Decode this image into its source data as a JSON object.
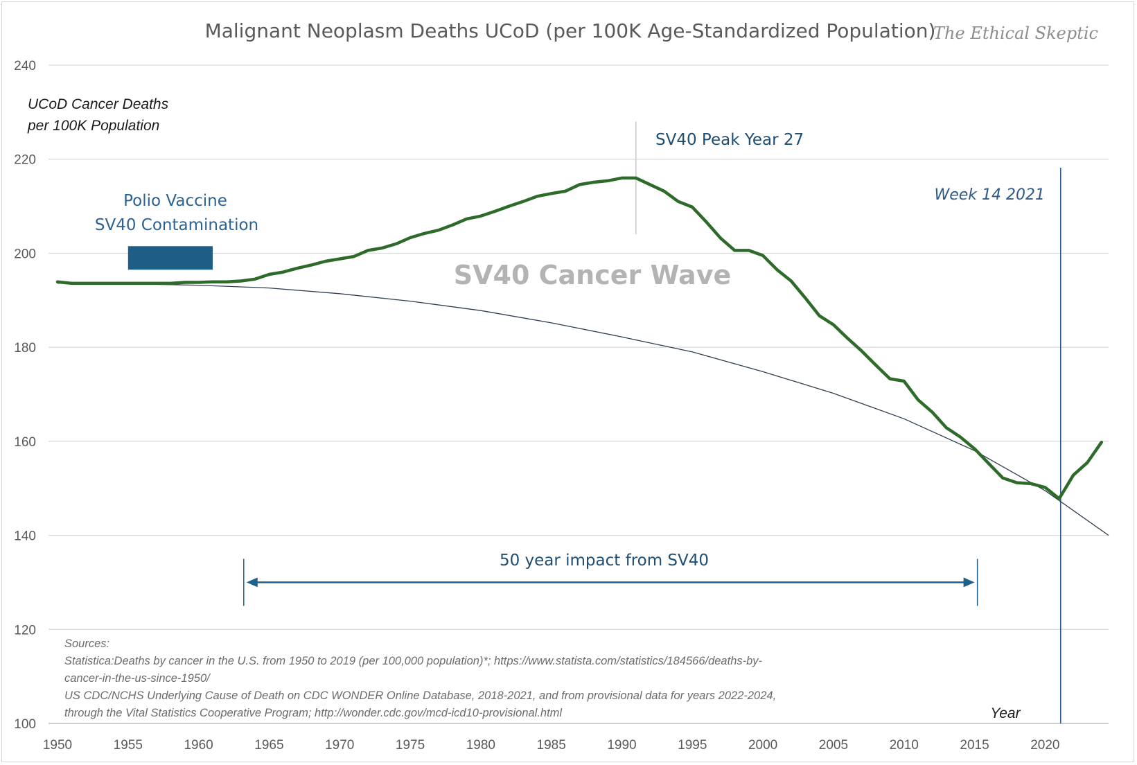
{
  "chart_data": {
    "type": "line",
    "title": "Malignant Neoplasm Deaths UCoD (per 100K Age-Standardized Population)",
    "watermark": "The Ethical Skeptic",
    "ylabel_line1": "UCoD Cancer Deaths",
    "ylabel_line2": "per 100K Population",
    "xlabel": "Year",
    "xlim": [
      1950,
      2024.5
    ],
    "ylim": [
      100,
      240
    ],
    "x_ticks": [
      1950,
      1955,
      1960,
      1965,
      1970,
      1975,
      1980,
      1985,
      1990,
      1995,
      2000,
      2005,
      2010,
      2015,
      2020
    ],
    "y_ticks": [
      100,
      120,
      140,
      160,
      180,
      200,
      220,
      240
    ],
    "grid": true,
    "legend": "none",
    "colors": {
      "actual": "#2e6b2a",
      "trend": "#2f3d4e",
      "annotation": "#2e6391",
      "arrow": "#1f5f8b",
      "vaccine_bar": "#1e5d85",
      "week_line": "#2e5a8a",
      "peak_line": "#c8c8c8",
      "grid": "#d9d9d9"
    },
    "series": [
      {
        "style": "thick",
        "x": [
          1950,
          1951,
          1952,
          1953,
          1954,
          1955,
          1956,
          1957,
          1958,
          1959,
          1960,
          1961,
          1962,
          1963,
          1964,
          1965,
          1966,
          1967,
          1968,
          1969,
          1970,
          1971,
          1972,
          1973,
          1974,
          1975,
          1976,
          1977,
          1978,
          1979,
          1980,
          1981,
          1982,
          1983,
          1984,
          1985,
          1986,
          1987,
          1988,
          1989,
          1990,
          1991,
          1992,
          1993,
          1994,
          1995,
          1996,
          1997,
          1998,
          1999,
          2000,
          2001,
          2002,
          2003,
          2004,
          2005,
          2006,
          2007,
          2008,
          2009,
          2010,
          2011,
          2012,
          2013,
          2014,
          2015,
          2016,
          2017,
          2018,
          2019,
          2020,
          2021,
          2022,
          2023,
          2024
        ],
        "values": [
          193.9,
          193.6,
          193.6,
          193.6,
          193.6,
          193.6,
          193.6,
          193.6,
          193.6,
          193.8,
          193.8,
          193.9,
          193.9,
          194.1,
          194.5,
          195.5,
          196.0,
          196.8,
          197.5,
          198.3,
          198.8,
          199.3,
          200.6,
          201.1,
          202.0,
          203.3,
          204.2,
          204.9,
          206.0,
          207.3,
          207.9,
          208.9,
          210.0,
          211.0,
          212.1,
          212.7,
          213.2,
          214.6,
          215.1,
          215.4,
          216.0,
          216.0,
          214.6,
          213.2,
          211.0,
          209.8,
          206.6,
          203.2,
          200.6,
          200.6,
          199.5,
          196.5,
          194.1,
          190.5,
          186.7,
          184.8,
          181.9,
          179.2,
          176.2,
          173.3,
          172.8,
          168.8,
          166.2,
          162.9,
          160.9,
          158.4,
          155.3,
          152.2,
          151.2,
          151.0,
          150.2,
          147.8,
          152.8,
          155.5,
          159.8
        ]
      },
      {
        "style": "thin",
        "x": [
          1950,
          1955,
          1960,
          1965,
          1970,
          1975,
          1980,
          1985,
          1990,
          1995,
          2000,
          2005,
          2010,
          2015,
          2020,
          2024.5
        ],
        "values": [
          193.6,
          193.5,
          193.2,
          192.6,
          191.4,
          189.8,
          187.8,
          185.2,
          182.2,
          179.0,
          174.8,
          170.2,
          164.8,
          158.0,
          149.5,
          140.0
        ]
      }
    ],
    "annotations": {
      "polio_line1": "Polio Vaccine",
      "polio_line2": "SV40 Contamination",
      "polio_bar_x": [
        1955,
        1961
      ],
      "polio_bar_y": [
        196.5,
        201.5
      ],
      "peak_label": "SV40 Peak Year 27",
      "peak_year": 1991,
      "peak_line_y": [
        204,
        228
      ],
      "wave_label": "SV40 Cancer Wave",
      "week_label": "Week 14 2021",
      "week_x": 2021.1,
      "impact_label": "50 year impact from SV40",
      "impact_x": [
        1963.2,
        2015.2
      ],
      "impact_y": 130,
      "impact_tick_y": [
        125,
        135
      ]
    },
    "sources": [
      "Sources:",
      "Statistica:Deaths by cancer in the U.S. from 1950 to 2019 (per 100,000 population)*; https://www.statista.com/statistics/184566/deaths-by-",
      "cancer-in-the-us-since-1950/",
      "US CDC/NCHS Underlying Cause of Death on CDC WONDER Online Database, 2018-2021, and from provisional data for years 2022-2024,",
      "through the Vital Statistics Cooperative Program; http://wonder.cdc.gov/mcd-icd10-provisional.html"
    ]
  }
}
